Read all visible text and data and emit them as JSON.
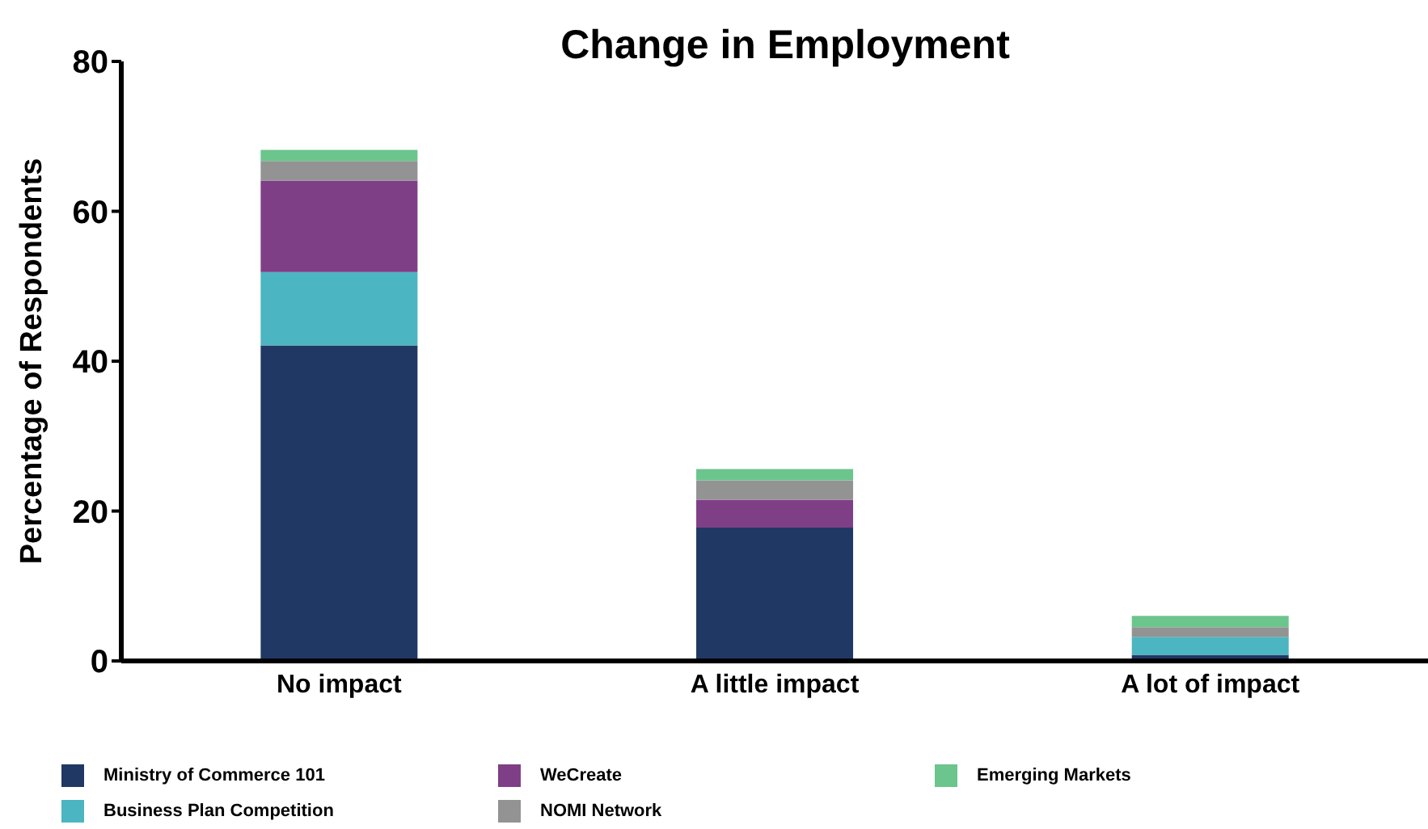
{
  "chart_data": {
    "type": "bar",
    "title": "Change in Employment",
    "ylabel": "Percentage of Respondents",
    "categories": [
      "No impact",
      "A little impact",
      "A lot of impact"
    ],
    "stacked": true,
    "ylim": [
      0,
      80
    ],
    "yticks": [
      0,
      20,
      40,
      60,
      80
    ],
    "grid": false,
    "legend": "bottom",
    "series": [
      {
        "name": "Ministry of Commerce 101",
        "color": "#203864",
        "values": [
          42.1,
          17.8,
          0.8
        ]
      },
      {
        "name": "Business Plan Competition",
        "color": "#4bb5c1",
        "values": [
          9.8,
          0,
          2.4
        ]
      },
      {
        "name": "WeCreate",
        "color": "#7f3f87",
        "values": [
          12.2,
          3.7,
          0
        ]
      },
      {
        "name": "NOMI Network",
        "color": "#939393",
        "values": [
          2.6,
          2.6,
          1.3
        ]
      },
      {
        "name": "Emerging Markets",
        "color": "#6cc58c",
        "values": [
          1.5,
          1.5,
          1.5
        ]
      }
    ]
  }
}
